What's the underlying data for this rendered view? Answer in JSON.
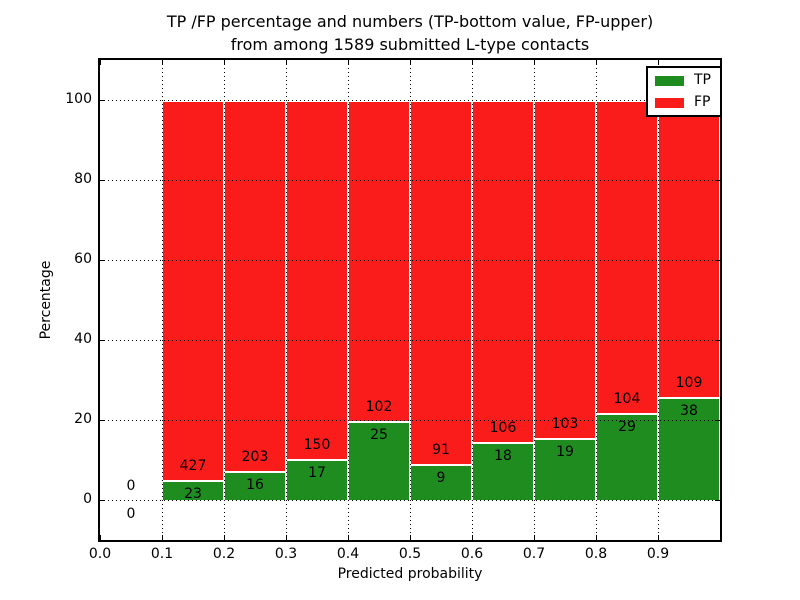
{
  "chart_data": {
    "type": "bar",
    "stacking": "percent",
    "title_line1": "TP /FP percentage and numbers (TP-bottom value, FP-upper)",
    "title_line2": "from among 1589 submitted L-type contacts",
    "xlabel": "Predicted probability",
    "ylabel": "Percentage",
    "total_submitted": 1589,
    "xlim": [
      0.0,
      1.0
    ],
    "ylim": [
      -10,
      110
    ],
    "bin_width": 0.1,
    "xticks": [
      0.0,
      0.1,
      0.2,
      0.3,
      0.4,
      0.5,
      0.6,
      0.7,
      0.8,
      0.9
    ],
    "xtick_labels": [
      "0.0",
      "0.1",
      "0.2",
      "0.3",
      "0.4",
      "0.5",
      "0.6",
      "0.7",
      "0.8",
      "0.9"
    ],
    "yticks": [
      0,
      20,
      40,
      60,
      80,
      100
    ],
    "ytick_labels": [
      "0",
      "20",
      "40",
      "60",
      "80",
      "100"
    ],
    "grid": "dotted-on",
    "legend_position": "upper-right",
    "categories": [
      0.0,
      0.1,
      0.2,
      0.3,
      0.4,
      0.5,
      0.6,
      0.7,
      0.8,
      0.9
    ],
    "series": [
      {
        "name": "TP",
        "color": "#1f8c1f",
        "values": [
          0,
          23,
          16,
          17,
          25,
          9,
          18,
          19,
          29,
          38
        ]
      },
      {
        "name": "FP",
        "color": "#fa1b1b",
        "values": [
          0,
          427,
          203,
          150,
          102,
          91,
          106,
          103,
          104,
          109
        ]
      }
    ],
    "bar_edge_color": "#ffffff",
    "grid_color": "#000000",
    "annotation_note": "TP count printed at bottom of stack, FP count printed above it"
  }
}
